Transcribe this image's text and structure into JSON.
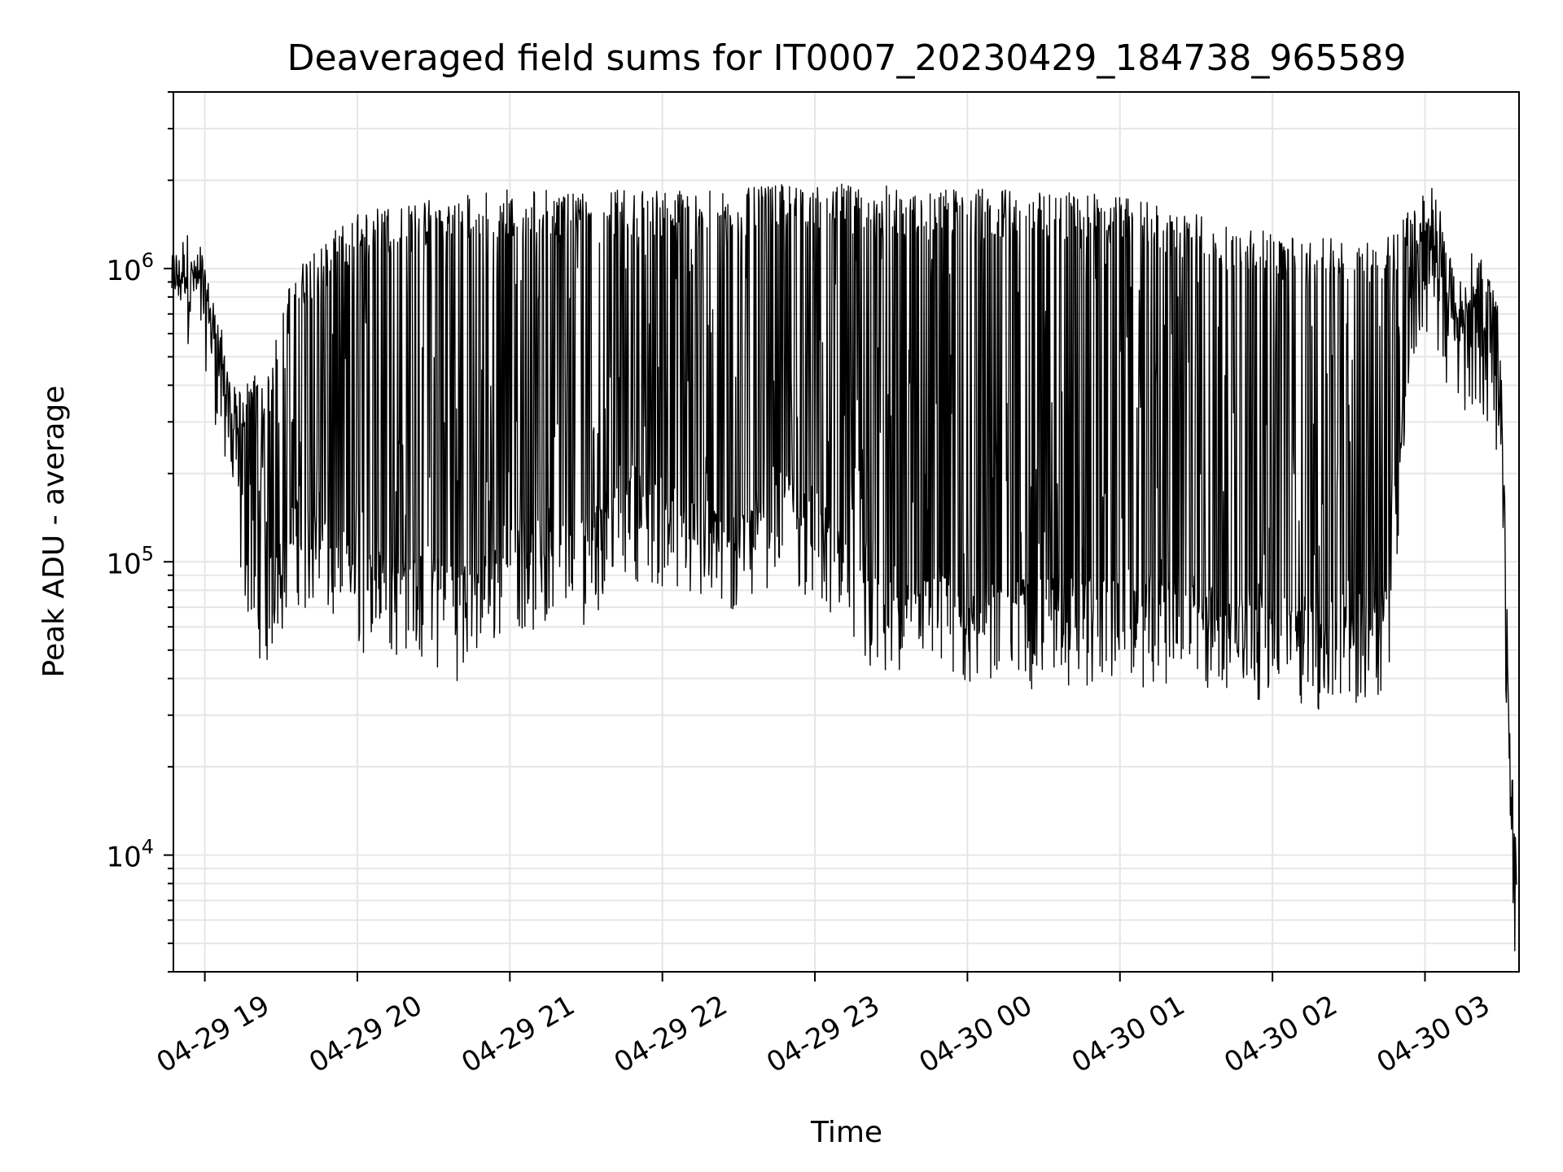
{
  "chart_data": {
    "type": "line",
    "title": "Deaveraged field sums for IT0007_20230429_184738_965589",
    "xlabel": "Time",
    "ylabel": "Peak ADU - average",
    "yscale": "log",
    "ylim": [
      4000,
      4000000
    ],
    "xlim": [
      "2023-04-29 18:47:38",
      "2023-04-30 03:37:00"
    ],
    "grid": true,
    "line_color": "#000000",
    "x_ticks": [
      {
        "value": "2023-04-29 19:00",
        "label": "04-29 19"
      },
      {
        "value": "2023-04-29 20:00",
        "label": "04-29 20"
      },
      {
        "value": "2023-04-29 21:00",
        "label": "04-29 21"
      },
      {
        "value": "2023-04-29 22:00",
        "label": "04-29 22"
      },
      {
        "value": "2023-04-29 23:00",
        "label": "04-29 23"
      },
      {
        "value": "2023-04-30 00:00",
        "label": "04-30 00"
      },
      {
        "value": "2023-04-30 01:00",
        "label": "04-30 01"
      },
      {
        "value": "2023-04-30 02:00",
        "label": "04-30 02"
      },
      {
        "value": "2023-04-30 03:00",
        "label": "04-30 03"
      }
    ],
    "y_ticks": [
      {
        "value": 10000,
        "base": "10",
        "exp": "4"
      },
      {
        "value": 100000,
        "base": "10",
        "exp": "5"
      },
      {
        "value": 1000000,
        "base": "10",
        "exp": "6"
      }
    ],
    "series": [
      {
        "name": "",
        "x": [
          "2023-04-29 18:47",
          "2023-04-29 18:50",
          "2023-04-29 18:55",
          "2023-04-29 18:57",
          "2023-04-29 19:00",
          "2023-04-29 19:03",
          "2023-04-29 19:06",
          "2023-04-29 19:09",
          "2023-04-29 19:12",
          "2023-04-29 19:15",
          "2023-04-29 19:18",
          "2023-04-29 19:21",
          "2023-04-29 19:24",
          "2023-04-29 19:27",
          "2023-04-29 19:30",
          "2023-04-29 19:33",
          "2023-04-29 19:36",
          "2023-04-29 19:40",
          "2023-04-29 19:45",
          "2023-04-29 19:50",
          "2023-04-29 19:55",
          "2023-04-29 20:00",
          "2023-04-29 20:10",
          "2023-04-29 20:20",
          "2023-04-29 20:30",
          "2023-04-29 20:40",
          "2023-04-29 20:50",
          "2023-04-29 21:00",
          "2023-04-29 21:15",
          "2023-04-29 21:30",
          "2023-04-29 21:45",
          "2023-04-29 22:00",
          "2023-04-29 22:15",
          "2023-04-29 22:30",
          "2023-04-29 22:45",
          "2023-04-29 23:00",
          "2023-04-29 23:15",
          "2023-04-29 23:30",
          "2023-04-29 23:45",
          "2023-04-30 00:00",
          "2023-04-30 00:15",
          "2023-04-30 00:30",
          "2023-04-30 00:45",
          "2023-04-30 01:00",
          "2023-04-30 01:15",
          "2023-04-30 01:30",
          "2023-04-30 01:45",
          "2023-04-30 02:00",
          "2023-04-30 02:15",
          "2023-04-30 02:30",
          "2023-04-30 02:45",
          "2023-04-30 02:55",
          "2023-04-30 03:00",
          "2023-04-30 03:05",
          "2023-04-30 03:10",
          "2023-04-30 03:15",
          "2023-04-30 03:20",
          "2023-04-30 03:25",
          "2023-04-30 03:30",
          "2023-04-30 03:33",
          "2023-04-30 03:36"
        ],
        "baseline": [
          800000,
          880000,
          900000,
          850000,
          780000,
          550000,
          400000,
          280000,
          180000,
          120000,
          100000,
          80000,
          70000,
          80000,
          90000,
          110000,
          120000,
          110000,
          100000,
          95000,
          90000,
          80000,
          75000,
          80000,
          70000,
          65000,
          75000,
          100000,
          90000,
          100000,
          150000,
          130000,
          110000,
          100000,
          150000,
          120000,
          70000,
          60000,
          60000,
          60000,
          60000,
          60000,
          60000,
          65000,
          60000,
          60000,
          50000,
          60000,
          50000,
          50000,
          60000,
          700000,
          1000000,
          800000,
          550000,
          500000,
          600000,
          400000,
          300000,
          20000,
          6000
        ],
        "peaks": [
          1000000,
          1100000,
          1000000,
          950000,
          900000,
          750000,
          600000,
          450000,
          350000,
          350000,
          400000,
          400000,
          350000,
          500000,
          600000,
          800000,
          900000,
          1000000,
          1100000,
          1200000,
          1300000,
          1400000,
          1500000,
          1500000,
          1600000,
          1600000,
          1700000,
          1700000,
          1700000,
          1750000,
          1700000,
          1700000,
          1700000,
          1700000,
          1750000,
          1800000,
          1750000,
          1750000,
          1700000,
          1700000,
          1700000,
          1700000,
          1650000,
          1600000,
          1500000,
          1400000,
          1300000,
          1200000,
          1150000,
          1150000,
          1200000,
          1500000,
          1900000,
          1600000,
          1000000,
          800000,
          1200000,
          900000,
          600000,
          30000,
          10000
        ]
      }
    ]
  }
}
